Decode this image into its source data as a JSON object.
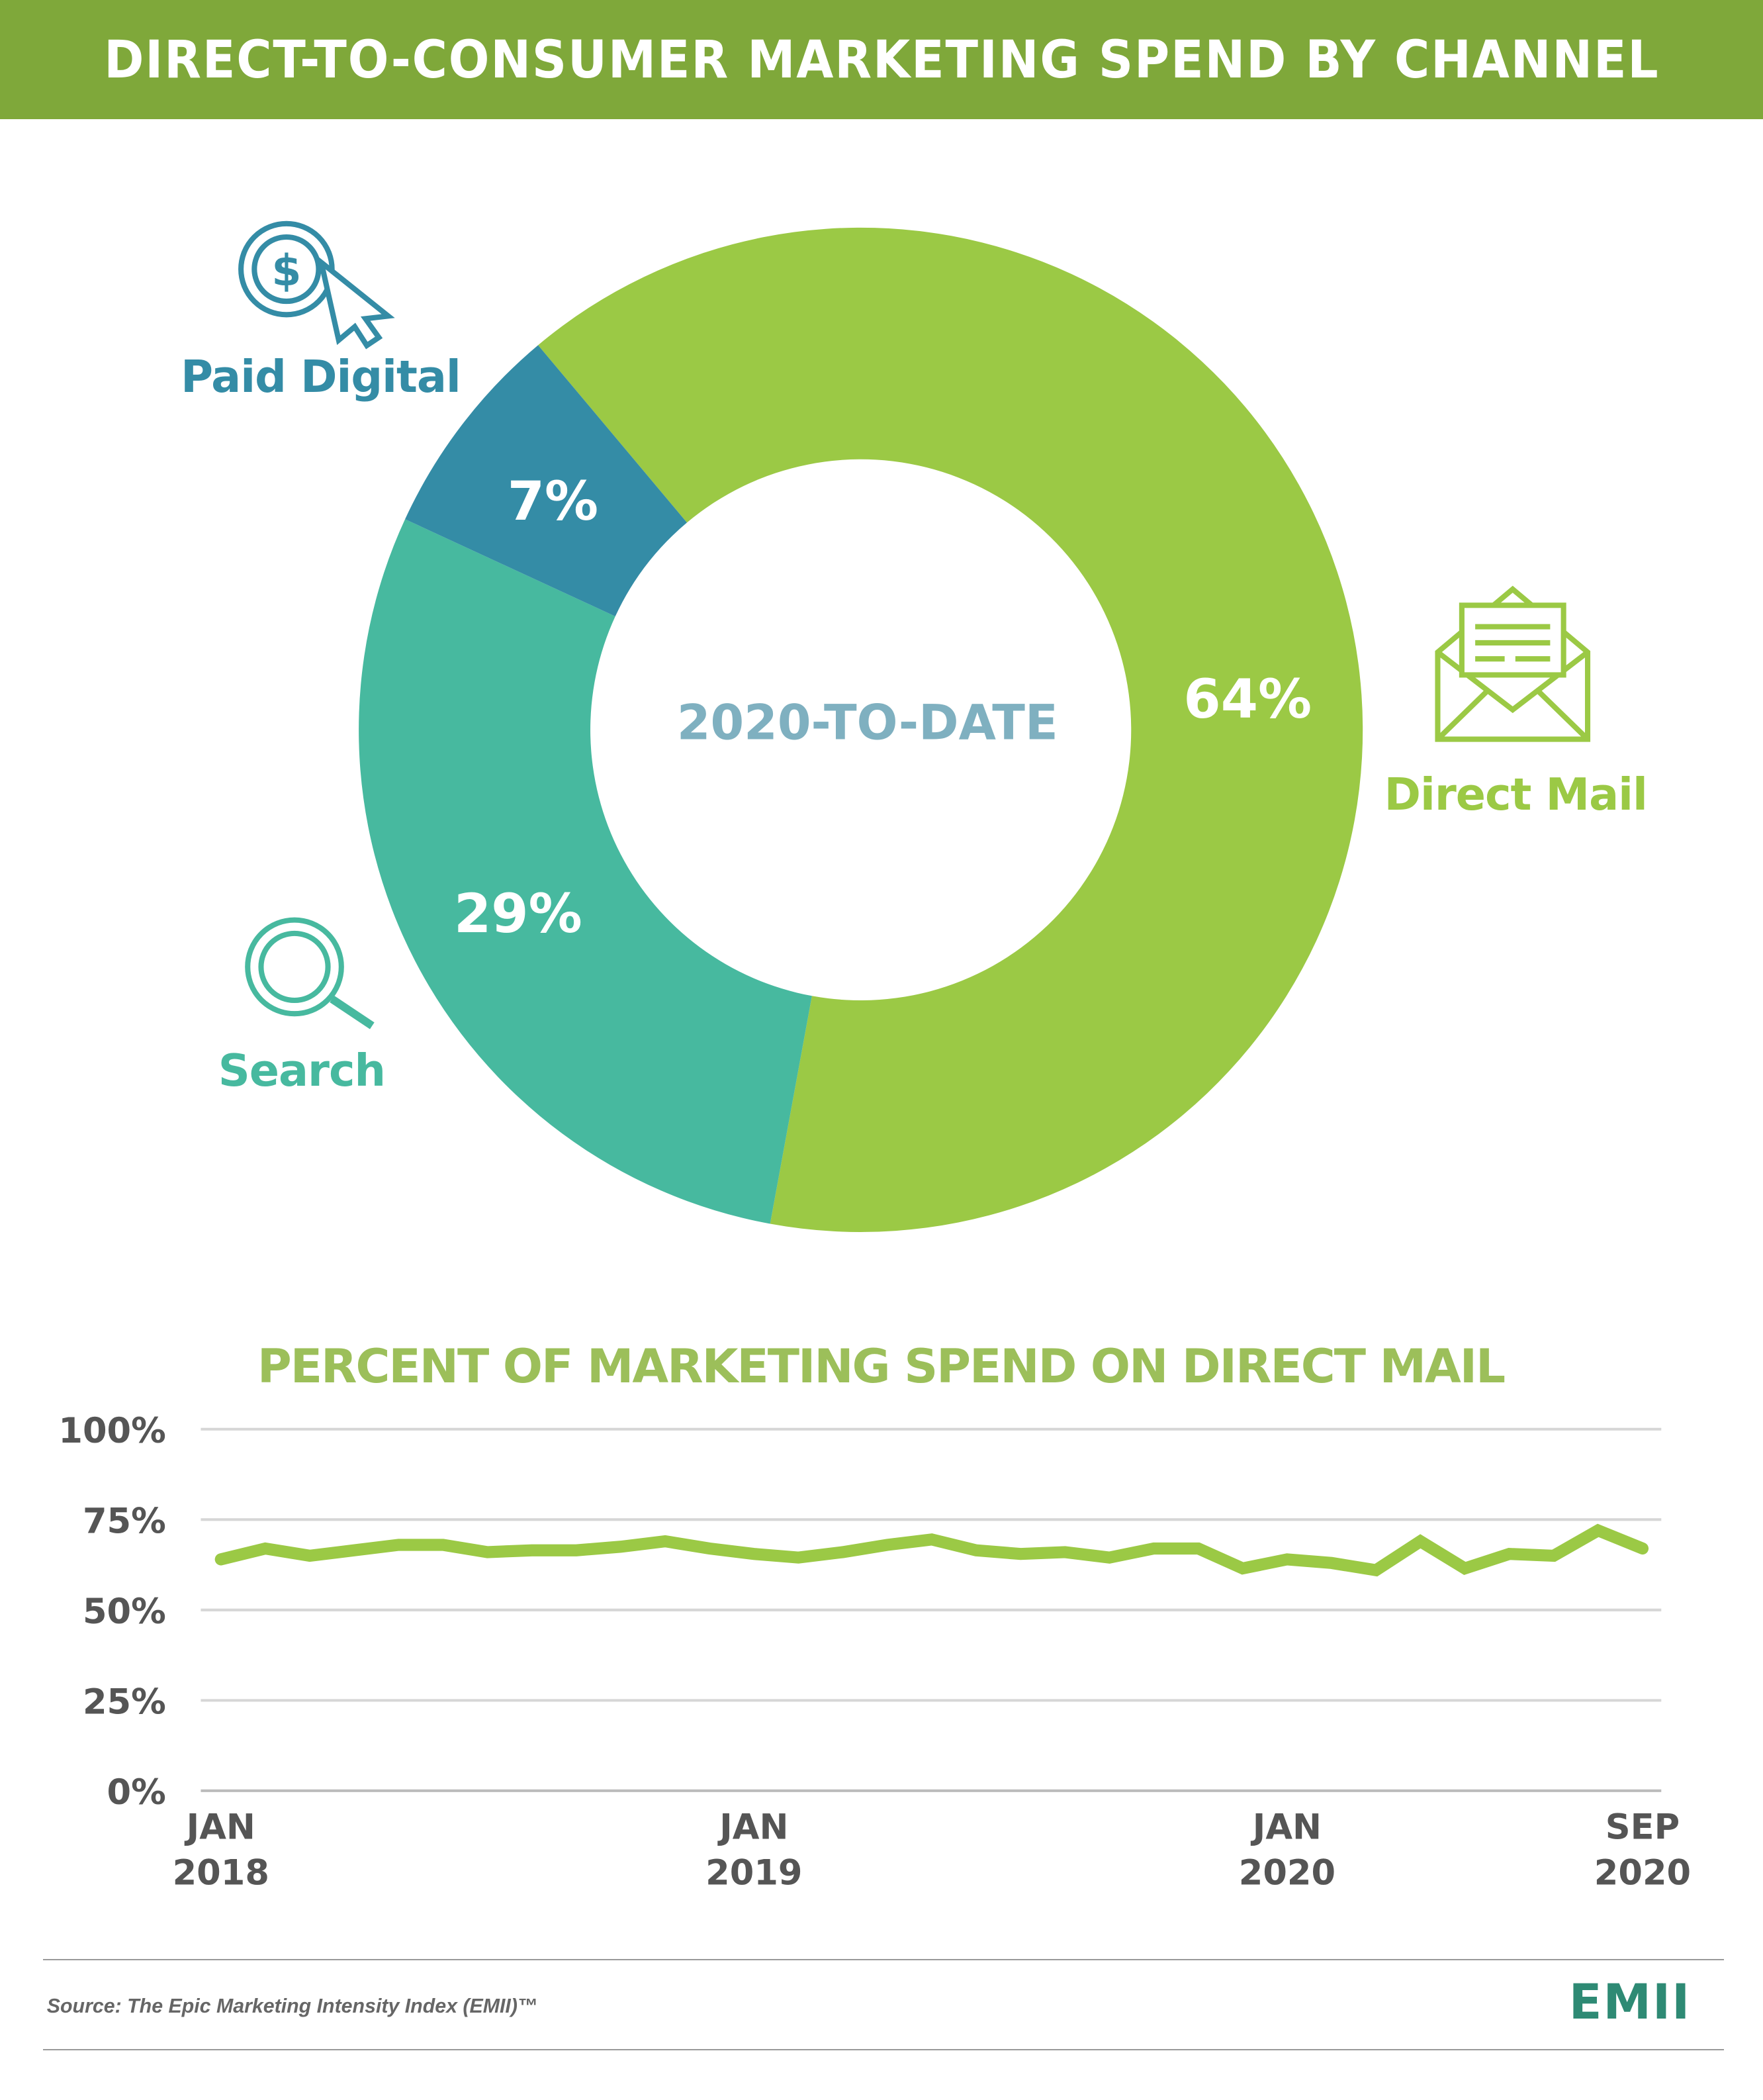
{
  "title": "DIRECT-TO-CONSUMER MARKETING SPEND BY CHANNEL",
  "colors": {
    "header": "#7fa83a",
    "direct_mail": "#9bc945",
    "search": "#47b99f",
    "paid_digital": "#348ca6",
    "center_text": "#7fb0c0",
    "line": "#9bc945"
  },
  "chart_data": [
    {
      "type": "pie",
      "variant": "donut",
      "center_label": "2020-TO-DATE",
      "slices": [
        {
          "name": "Direct Mail",
          "value": 64,
          "label": "64%",
          "color": "#9bc945",
          "icon": "envelope-letter-icon"
        },
        {
          "name": "Search",
          "value": 29,
          "label": "29%",
          "color": "#47b99f",
          "icon": "magnifier-icon"
        },
        {
          "name": "Paid Digital",
          "value": 7,
          "label": "7%",
          "color": "#348ca6",
          "icon": "dollar-cursor-icon"
        }
      ]
    },
    {
      "type": "line",
      "title": "PERCENT OF MARKETING SPEND ON DIRECT MAIL",
      "ylim": [
        0,
        100
      ],
      "y_ticks": [
        "0%",
        "25%",
        "50%",
        "75%",
        "100%"
      ],
      "grid": true,
      "x_start": "2018-01",
      "x_end": "2020-09",
      "x_ticks": [
        {
          "month": "2018-01",
          "line1": "JAN",
          "line2": "2018"
        },
        {
          "month": "2019-01",
          "line1": "JAN",
          "line2": "2019"
        },
        {
          "month": "2020-01",
          "line1": "JAN",
          "line2": "2020"
        },
        {
          "month": "2020-09",
          "line1": "SEP",
          "line2": "2020"
        }
      ],
      "values": [
        64,
        67,
        65,
        66.5,
        68,
        68,
        66,
        66.5,
        66.5,
        67.5,
        69,
        67,
        65.5,
        64.5,
        66,
        68,
        69.5,
        66.5,
        65.5,
        66,
        64.5,
        67,
        67,
        61.5,
        64,
        63,
        61,
        69,
        61.5,
        65.5,
        65,
        72,
        67
      ]
    }
  ],
  "footer": {
    "source": "Source: The Epic Marketing Intensity Index (EMII)™",
    "logo": "EMII"
  }
}
